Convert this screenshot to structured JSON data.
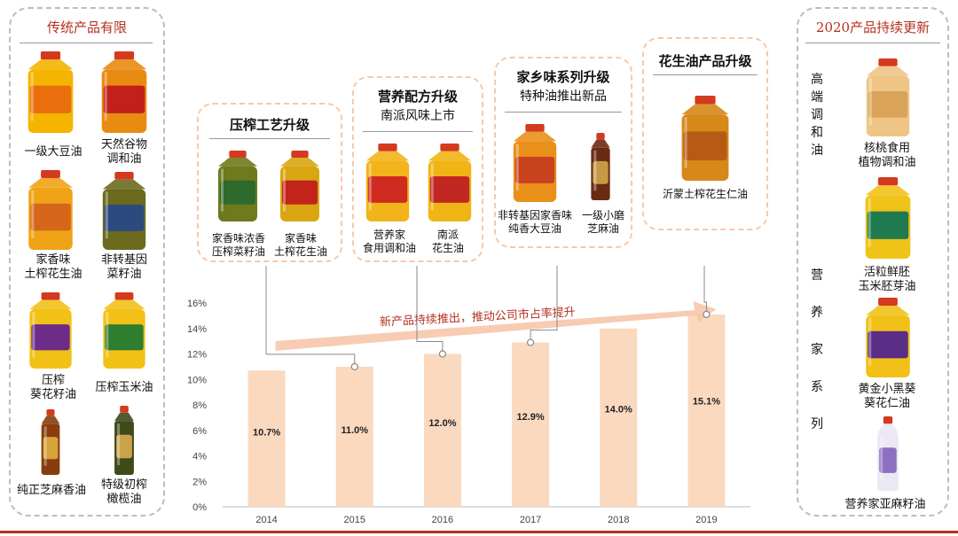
{
  "left_panel": {
    "title": "传统产品有限",
    "products": [
      {
        "label": "一级大豆油",
        "icon": "yellow-oil-bottle-icon"
      },
      {
        "label": "天然谷物\n调和油",
        "icon": "red-oil-bottle-icon"
      },
      {
        "label": "家香味\n土榨花生油",
        "icon": "orange-oil-bottle-icon"
      },
      {
        "label": "非转基因\n菜籽油",
        "icon": "dark-oil-bottle-icon"
      },
      {
        "label": "压榨\n葵花籽油",
        "icon": "purple-oil-bottle-icon"
      },
      {
        "label": "压榨玉米油",
        "icon": "green-oil-bottle-icon"
      },
      {
        "label": "纯正芝麻香油",
        "icon": "sesame-oil-bottle-icon"
      },
      {
        "label": "特级初榨\n橄榄油",
        "icon": "olive-oil-bottle-icon"
      }
    ]
  },
  "right_panel": {
    "title": "2020产品持续更新",
    "group1_label": "高端调和油",
    "group2_label": "营养家系列",
    "products": [
      {
        "label": "核桃食用\n植物调和油",
        "icon": "walnut-oil-bottle-icon"
      },
      {
        "label": "活粒鲜胚\n玉米胚芽油",
        "icon": "corn-germ-oil-bottle-icon"
      },
      {
        "label": "黄金小黑葵\n葵花仁油",
        "icon": "sunflower-oil-bottle-icon"
      },
      {
        "label": "营养家亚麻籽油",
        "icon": "flaxseed-oil-bottle-icon"
      }
    ]
  },
  "callouts": [
    {
      "title": "压榨工艺升级",
      "subtitle": "",
      "items": [
        "家香味浓香\n压榨菜籽油",
        "家香味\n土榨花生油"
      ]
    },
    {
      "title": "营养配方升级",
      "subtitle": "南派风味上市",
      "items": [
        "营养家\n食用调和油",
        "南派\n花生油"
      ]
    },
    {
      "title": "家乡味系列升级",
      "subtitle": "特种油推出新品",
      "items": [
        "非转基因家香味\n纯香大豆油",
        "一级小磨\n芝麻油"
      ]
    },
    {
      "title": "花生油产品升级",
      "subtitle": "",
      "items": [
        "沂蒙土榨花生仁油"
      ]
    }
  ],
  "colors": {
    "bar": "#fbd9bf",
    "arrow": "#f6c3a6",
    "accent_red": "#b5301f",
    "panel_border": "#bdbdbd",
    "callout_border": "#f6c9a8"
  },
  "chart_data": {
    "type": "bar",
    "categories": [
      "2014",
      "2015",
      "2016",
      "2017",
      "2018",
      "2019"
    ],
    "values": [
      10.7,
      11.0,
      12.0,
      12.9,
      14.0,
      15.1
    ],
    "value_labels": [
      "10.7%",
      "11.0%",
      "12.0%",
      "12.9%",
      "14.0%",
      "15.1%"
    ],
    "y_ticks": [
      "0%",
      "2%",
      "4%",
      "6%",
      "8%",
      "10%",
      "12%",
      "14%",
      "16%"
    ],
    "ylim": [
      0,
      16
    ],
    "annotation": "新产品持续推出，推动公司市占率提升",
    "grid": false,
    "legend": "none"
  }
}
